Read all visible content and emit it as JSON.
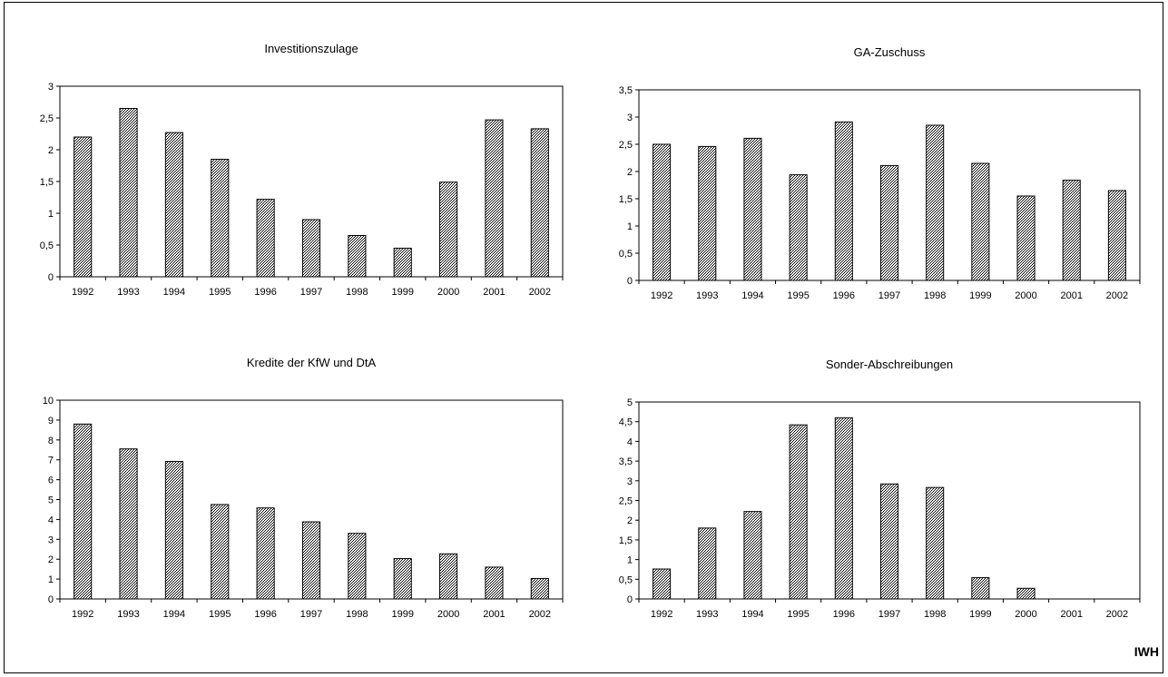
{
  "source_label": "IWH",
  "chart_data": [
    {
      "type": "bar",
      "title": "Investitionszulage",
      "categories": [
        "1992",
        "1993",
        "1994",
        "1995",
        "1996",
        "1997",
        "1998",
        "1999",
        "2000",
        "2001",
        "2002"
      ],
      "values": [
        2.2,
        2.65,
        2.27,
        1.85,
        1.22,
        0.9,
        0.65,
        0.45,
        1.49,
        2.47,
        2.33
      ],
      "ylim": [
        0,
        3
      ],
      "yticks": [
        "0",
        "0,5",
        "1",
        "1,5",
        "2",
        "2,5",
        "3"
      ],
      "ytick_values": [
        0,
        0.5,
        1,
        1.5,
        2,
        2.5,
        3
      ],
      "grid": false,
      "legend": "none"
    },
    {
      "type": "bar",
      "title": "GA-Zuschuss",
      "categories": [
        "1992",
        "1993",
        "1994",
        "1995",
        "1996",
        "1997",
        "1998",
        "1999",
        "2000",
        "2001",
        "2002"
      ],
      "values": [
        2.5,
        2.46,
        2.61,
        1.94,
        2.91,
        2.11,
        2.85,
        2.15,
        1.55,
        1.84,
        1.65
      ],
      "ylim": [
        0,
        3.5
      ],
      "yticks": [
        "0",
        "0,5",
        "1",
        "1,5",
        "2",
        "2,5",
        "3",
        "3,5"
      ],
      "ytick_values": [
        0,
        0.5,
        1,
        1.5,
        2,
        2.5,
        3,
        3.5
      ],
      "grid": false,
      "legend": "none"
    },
    {
      "type": "bar",
      "title": "Kredite der KfW und DtA",
      "categories": [
        "1992",
        "1993",
        "1994",
        "1995",
        "1996",
        "1997",
        "1998",
        "1999",
        "2000",
        "2001",
        "2002"
      ],
      "values": [
        8.8,
        7.55,
        6.92,
        4.75,
        4.58,
        3.88,
        3.3,
        2.03,
        2.27,
        1.6,
        1.03
      ],
      "ylim": [
        0,
        10
      ],
      "yticks": [
        "0",
        "1",
        "2",
        "3",
        "4",
        "5",
        "6",
        "7",
        "8",
        "9",
        "10"
      ],
      "ytick_values": [
        0,
        1,
        2,
        3,
        4,
        5,
        6,
        7,
        8,
        9,
        10
      ],
      "grid": false,
      "legend": "none"
    },
    {
      "type": "bar",
      "title": "Sonder-Abschreibungen",
      "categories": [
        "1992",
        "1993",
        "1994",
        "1995",
        "1996",
        "1997",
        "1998",
        "1999",
        "2000",
        "2001",
        "2002"
      ],
      "values": [
        0.76,
        1.8,
        2.22,
        4.42,
        4.6,
        2.92,
        2.83,
        0.54,
        0.27,
        0,
        0
      ],
      "ylim": [
        0,
        5
      ],
      "yticks": [
        "0",
        "0,5",
        "1",
        "1,5",
        "2",
        "2,5",
        "3",
        "3,5",
        "4",
        "4,5",
        "5"
      ],
      "ytick_values": [
        0,
        0.5,
        1,
        1.5,
        2,
        2.5,
        3,
        3.5,
        4,
        4.5,
        5
      ],
      "grid": false,
      "legend": "none"
    }
  ]
}
